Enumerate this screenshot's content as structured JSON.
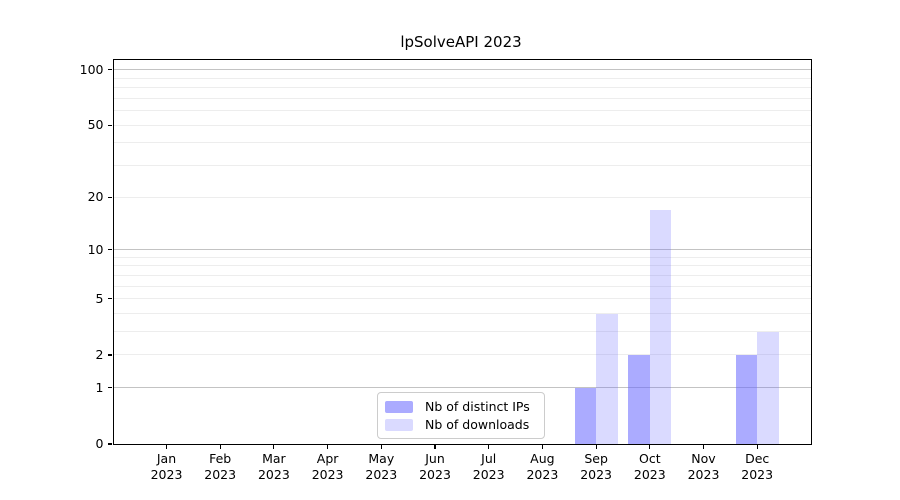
{
  "chart_data": {
    "type": "bar",
    "title": "lpSolveAPI 2023",
    "categories": [
      "Jan 2023",
      "Feb 2023",
      "Mar 2023",
      "Apr 2023",
      "May 2023",
      "Jun 2023",
      "Jul 2023",
      "Aug 2023",
      "Sep 2023",
      "Oct 2023",
      "Nov 2023",
      "Dec 2023"
    ],
    "series": [
      {
        "name": "Nb of distinct IPs",
        "color": "#6666ff",
        "alpha": 0.55,
        "values": [
          0,
          0,
          0,
          0,
          0,
          0,
          0,
          0,
          1,
          2,
          0,
          2
        ]
      },
      {
        "name": "Nb of downloads",
        "color": "#6666ff",
        "alpha": 0.24,
        "values": [
          0,
          0,
          0,
          0,
          0,
          0,
          0,
          0,
          4,
          17,
          0,
          3
        ]
      }
    ],
    "yscale": "log1p",
    "ylim": [
      0,
      113
    ],
    "yticks": [
      0,
      1,
      2,
      5,
      10,
      20,
      50,
      100
    ],
    "gridlines": {
      "major": [
        1,
        10,
        100
      ],
      "minor": [
        2,
        3,
        4,
        5,
        6,
        7,
        8,
        9,
        20,
        30,
        40,
        50,
        60,
        70,
        80,
        90
      ]
    },
    "grid": true,
    "legend_position": "lower center, inside plot",
    "colors": {
      "spine": "#000000",
      "major_grid": "#c3c3c3",
      "minor_grid": "#ededed",
      "legend_border": "#cccccc",
      "background": "#ffffff"
    }
  }
}
